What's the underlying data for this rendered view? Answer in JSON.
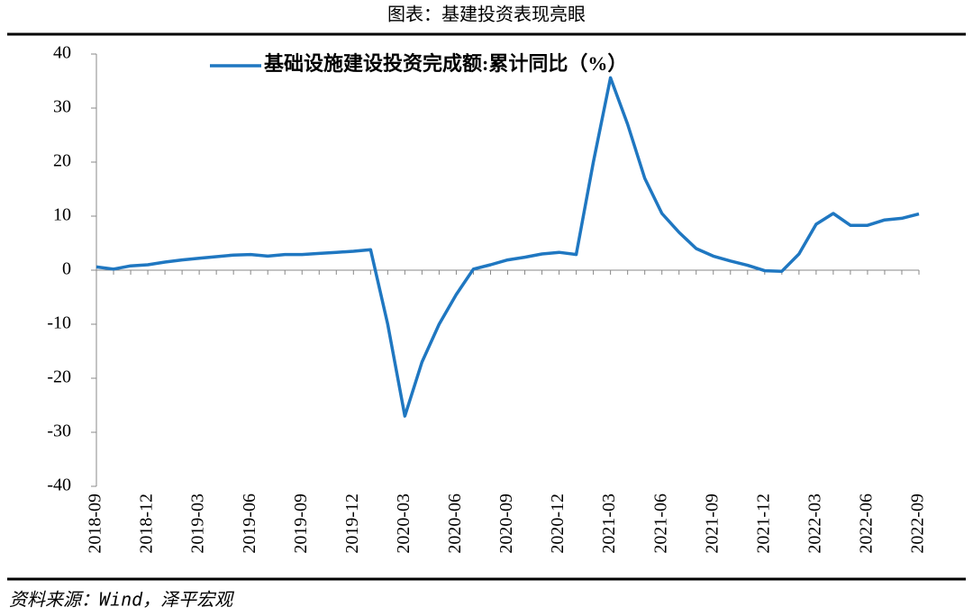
{
  "chart_data": {
    "type": "line",
    "title": "图表：基建投资表现亮眼",
    "source": "资料来源：Wind，泽平宏观",
    "categories": [
      "2018-09",
      null,
      null,
      "2018-12",
      null,
      null,
      "2019-03",
      null,
      null,
      "2019-06",
      null,
      null,
      "2019-09",
      null,
      null,
      "2019-12",
      null,
      null,
      "2020-03",
      null,
      null,
      "2020-06",
      null,
      null,
      "2020-09",
      null,
      null,
      "2020-12",
      null,
      null,
      "2021-03",
      null,
      null,
      "2021-06",
      null,
      null,
      "2021-09",
      null,
      null,
      "2021-12",
      null,
      null,
      "2022-03",
      null,
      null,
      "2022-06",
      null,
      null,
      "2022-09"
    ],
    "series": [
      {
        "name": "基础设施建设投资完成额:累计同比（%）",
        "color": "#1f77c1",
        "values": [
          0.6,
          0.2,
          0.8,
          1.0,
          1.5,
          1.9,
          2.2,
          2.5,
          2.8,
          2.9,
          2.6,
          2.9,
          2.9,
          3.1,
          3.3,
          3.5,
          3.8,
          -10,
          -27,
          -17,
          -10,
          -4.5,
          0.2,
          1.0,
          1.9,
          2.4,
          3.0,
          3.3,
          2.9,
          20,
          35.6,
          27,
          17,
          10.5,
          7,
          4,
          2.6,
          1.7,
          0.9,
          -0.1,
          -0.2,
          3,
          8.5,
          10.5,
          8.3,
          8.3,
          9.3,
          9.6,
          10.4
        ]
      }
    ],
    "ylim": [
      -40,
      40
    ],
    "yticks": [
      -40,
      -30,
      -20,
      -10,
      0,
      10,
      20,
      30,
      40
    ],
    "legend": "top"
  }
}
